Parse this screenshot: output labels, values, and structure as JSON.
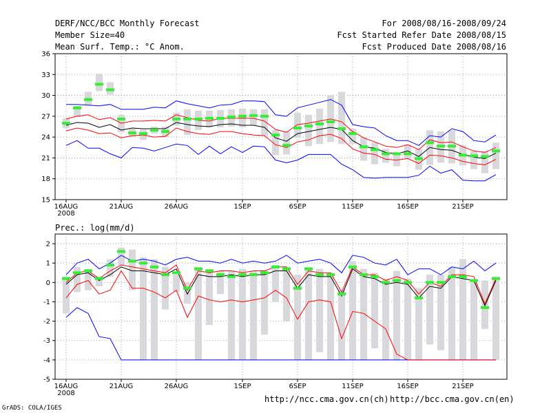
{
  "header": {
    "title": "DERF/NCC/BCC Monthly Forecast",
    "member_size": "Member Size=40",
    "panel1_label": "Mean Surf. Temp.: °C Anom.",
    "period": "For 2008/08/16-2008/09/24",
    "start_ref": "Fcst Started Refer Date 2008/08/15",
    "produced": "Fcst Produced Date 2008/08/16"
  },
  "panel2_label": "Prec.: log(mm/d)",
  "footer": {
    "url_ch": "http://ncc.cma.gov.cn(ch)",
    "url_en": "http://bcc.cma.gov.cn(en)",
    "grads": "GrADS: COLA/IGES"
  },
  "colors": {
    "max_line": "#0000ff",
    "mean_line": "#000000",
    "spread_line": "#ff0000",
    "box": "#d8d8dc",
    "member_mark": "#33ee33",
    "grid": "#888888"
  },
  "chart_data": [
    {
      "type": "line",
      "title": "Mean Surf. Temp.: °C Anom.",
      "x_ticks": [
        {
          "day": 1,
          "label": "16AUG",
          "sub": "2008"
        },
        {
          "day": 6,
          "label": "21AUG"
        },
        {
          "day": 11,
          "label": "26AUG"
        },
        {
          "day": 17,
          "label": "1SEP"
        },
        {
          "day": 22,
          "label": "6SEP"
        },
        {
          "day": 27,
          "label": "11SEP"
        },
        {
          "day": 32,
          "label": "16SEP"
        },
        {
          "day": 37,
          "label": "21SEP"
        }
      ],
      "y_ticks": [
        15,
        18,
        21,
        24,
        27,
        30,
        33,
        36
      ],
      "ylim": [
        15,
        36
      ],
      "xlim": [
        0,
        41
      ],
      "days": [
        1,
        2,
        3,
        4,
        5,
        6,
        7,
        8,
        9,
        10,
        11,
        12,
        13,
        14,
        15,
        16,
        17,
        18,
        19,
        20,
        21,
        22,
        23,
        24,
        25,
        26,
        27,
        28,
        29,
        30,
        31,
        32,
        33,
        34,
        35,
        36,
        37,
        38,
        39,
        40
      ],
      "series": [
        {
          "name": "max",
          "color": "#0000ff",
          "values": [
            28.7,
            28.7,
            28.6,
            28.5,
            28.7,
            28.0,
            28.0,
            28.0,
            28.3,
            28.2,
            29.2,
            28.8,
            28.5,
            28.2,
            28.6,
            28.7,
            29.2,
            29.2,
            29.1,
            27.2,
            27.0,
            28.2,
            28.6,
            29.0,
            29.4,
            28.6,
            25.8,
            25.5,
            25.3,
            24.2,
            23.5,
            23.5,
            22.8,
            24.2,
            24.0,
            25.2,
            24.8,
            23.5,
            23.3,
            24.3
          ]
        },
        {
          "name": "upper",
          "color": "#ff0000",
          "values": [
            26.6,
            27.0,
            27.2,
            26.5,
            26.8,
            26.0,
            26.3,
            26.3,
            26.4,
            26.3,
            27.2,
            26.8,
            26.4,
            26.3,
            26.7,
            26.7,
            26.7,
            26.7,
            26.3,
            25.1,
            24.7,
            25.8,
            26.0,
            26.3,
            26.6,
            26.2,
            24.8,
            23.9,
            23.3,
            22.7,
            22.5,
            22.9,
            22.2,
            23.6,
            23.2,
            23.3,
            22.6,
            22.0,
            21.8,
            22.5
          ]
        },
        {
          "name": "mean",
          "color": "#000000",
          "values": [
            25.7,
            26.1,
            26.0,
            25.4,
            25.8,
            25.0,
            25.3,
            25.2,
            25.2,
            25.2,
            26.1,
            25.8,
            25.6,
            25.5,
            25.8,
            25.9,
            25.7,
            25.7,
            25.4,
            23.9,
            23.4,
            24.5,
            24.8,
            25.1,
            25.4,
            25.1,
            23.5,
            22.6,
            22.4,
            21.8,
            21.6,
            22.0,
            21.2,
            22.5,
            22.2,
            22.1,
            21.5,
            21.1,
            20.9,
            21.7
          ]
        },
        {
          "name": "lower",
          "color": "#ff0000",
          "values": [
            24.9,
            25.3,
            25.0,
            24.5,
            24.6,
            23.9,
            24.2,
            24.3,
            24.0,
            24.1,
            25.3,
            24.8,
            24.5,
            24.4,
            24.8,
            24.8,
            24.5,
            24.3,
            24.2,
            22.9,
            22.5,
            23.3,
            23.6,
            24.2,
            24.4,
            23.8,
            22.3,
            21.7,
            21.5,
            20.8,
            20.7,
            20.9,
            20.2,
            21.4,
            21.3,
            21.0,
            20.5,
            20.2,
            20.0,
            20.8
          ]
        },
        {
          "name": "min",
          "color": "#0000ff",
          "values": [
            22.8,
            23.5,
            22.4,
            22.4,
            21.6,
            21.0,
            22.5,
            22.4,
            22.0,
            22.5,
            23.0,
            22.8,
            21.5,
            22.7,
            21.6,
            22.6,
            21.8,
            22.7,
            22.6,
            20.7,
            20.3,
            20.7,
            21.5,
            21.5,
            21.5,
            20.1,
            19.3,
            18.2,
            18.1,
            18.2,
            18.2,
            18.2,
            18.5,
            19.8,
            18.8,
            19.3,
            17.8,
            17.7,
            17.7,
            18.6
          ]
        }
      ],
      "boxes": [
        [
          25.3,
          26.7
        ],
        [
          26.9,
          28.5
        ],
        [
          28.6,
          30.5
        ],
        [
          30.6,
          33.1
        ],
        [
          30.1,
          31.9
        ],
        [
          24.7,
          27.2
        ],
        [
          24.0,
          25.2
        ],
        [
          23.6,
          25.1
        ],
        [
          24.5,
          25.5
        ],
        [
          24.0,
          25.5
        ],
        [
          25.7,
          27.5
        ],
        [
          24.3,
          28.0
        ],
        [
          25.0,
          27.8
        ],
        [
          25.4,
          27.8
        ],
        [
          25.4,
          27.9
        ],
        [
          25.5,
          28.0
        ],
        [
          25.4,
          28.1
        ],
        [
          25.7,
          28.0
        ],
        [
          24.2,
          28.0
        ],
        [
          21.4,
          25.0
        ],
        [
          21.5,
          24.8
        ],
        [
          23.9,
          27.5
        ],
        [
          22.7,
          27.2
        ],
        [
          23.0,
          28.1
        ],
        [
          23.3,
          30.0
        ],
        [
          23.0,
          30.5
        ],
        [
          23.0,
          25.2
        ],
        [
          20.6,
          24.0
        ],
        [
          20.1,
          23.2
        ],
        [
          20.3,
          22.3
        ],
        [
          19.8,
          21.8
        ],
        [
          20.9,
          22.9
        ],
        [
          19.3,
          22.3
        ],
        [
          20.0,
          25.0
        ],
        [
          20.3,
          24.8
        ],
        [
          20.2,
          25.0
        ],
        [
          19.9,
          22.8
        ],
        [
          19.4,
          22.0
        ],
        [
          18.8,
          22.0
        ],
        [
          19.4,
          23.2
        ]
      ],
      "member_marks": [
        26.0,
        28.2,
        29.4,
        31.6,
        30.8,
        26.6,
        24.6,
        24.5,
        25.0,
        24.8,
        26.6,
        26.6,
        26.6,
        26.7,
        26.7,
        26.9,
        27.0,
        27.1,
        27.0,
        24.3,
        22.8,
        25.3,
        25.6,
        25.9,
        26.2,
        25.2,
        24.5,
        22.6,
        22.2,
        21.6,
        21.6,
        21.6,
        20.9,
        23.2,
        22.7,
        22.7,
        21.4,
        21.3,
        21.2,
        22.0
      ]
    },
    {
      "type": "line",
      "title": "Prec.: log(mm/d)",
      "x_ticks": [
        {
          "day": 1,
          "label": "16AUG",
          "sub": "2008"
        },
        {
          "day": 6,
          "label": "21AUG"
        },
        {
          "day": 11,
          "label": "26AUG"
        },
        {
          "day": 17,
          "label": "1SEP"
        },
        {
          "day": 22,
          "label": "6SEP"
        },
        {
          "day": 27,
          "label": "11SEP"
        },
        {
          "day": 32,
          "label": "16SEP"
        },
        {
          "day": 37,
          "label": "21SEP"
        }
      ],
      "y_ticks": [
        -5,
        -4,
        -3,
        -2,
        -1,
        0,
        1,
        2
      ],
      "ylim": [
        -5,
        2.5
      ],
      "xlim": [
        0,
        41
      ],
      "days": [
        1,
        2,
        3,
        4,
        5,
        6,
        7,
        8,
        9,
        10,
        11,
        12,
        13,
        14,
        15,
        16,
        17,
        18,
        19,
        20,
        21,
        22,
        23,
        24,
        25,
        26,
        27,
        28,
        29,
        30,
        31,
        32,
        33,
        34,
        35,
        36,
        37,
        38,
        39,
        40
      ],
      "series": [
        {
          "name": "max",
          "color": "#0000ff",
          "values": [
            0.4,
            1.0,
            1.2,
            0.7,
            1.0,
            1.4,
            1.1,
            1.2,
            1.1,
            0.9,
            1.2,
            1.3,
            1.1,
            1.1,
            1.0,
            1.2,
            1.0,
            1.1,
            1.0,
            1.1,
            1.4,
            1.0,
            1.1,
            1.2,
            1.0,
            0.5,
            1.4,
            1.3,
            1.0,
            0.9,
            1.2,
            0.4,
            0.7,
            0.7,
            0.4,
            0.8,
            0.7,
            1.1,
            0.6,
            1.0
          ]
        },
        {
          "name": "upper",
          "color": "#ff0000",
          "values": [
            0.0,
            0.5,
            0.6,
            0.2,
            0.6,
            0.9,
            0.8,
            0.7,
            0.6,
            0.5,
            0.9,
            -0.4,
            0.6,
            0.5,
            0.6,
            0.6,
            0.5,
            0.6,
            0.6,
            0.8,
            0.8,
            -0.1,
            0.6,
            0.5,
            0.5,
            -0.5,
            0.8,
            0.4,
            0.4,
            0.1,
            0.3,
            0.1,
            -0.6,
            0.0,
            -0.2,
            0.4,
            0.4,
            0.3,
            -1.1,
            0.2
          ]
        },
        {
          "name": "mean",
          "color": "#000000",
          "values": [
            -0.1,
            0.4,
            0.5,
            0.1,
            0.4,
            0.8,
            0.6,
            0.6,
            0.5,
            0.4,
            0.7,
            -0.6,
            0.4,
            0.3,
            0.3,
            0.4,
            0.3,
            0.4,
            0.4,
            0.6,
            0.6,
            -0.3,
            0.4,
            0.3,
            0.3,
            -0.7,
            0.7,
            0.3,
            0.2,
            -0.1,
            0.0,
            -0.1,
            -0.8,
            -0.2,
            -0.3,
            0.3,
            0.2,
            0.1,
            -1.2,
            0.1
          ]
        },
        {
          "name": "lower",
          "color": "#ff0000",
          "values": [
            -0.8,
            -0.1,
            0.1,
            -0.6,
            -0.4,
            0.6,
            -0.3,
            -0.3,
            -0.5,
            -0.8,
            -0.4,
            -1.8,
            -0.7,
            -0.9,
            -1.0,
            -0.9,
            -1.0,
            -0.9,
            -0.8,
            -0.4,
            -0.8,
            -1.9,
            -1.0,
            -0.9,
            -1.0,
            -2.9,
            -1.5,
            -1.6,
            -2.0,
            -2.4,
            -3.7,
            -4.0,
            null,
            null,
            null,
            null,
            null,
            null,
            null,
            null
          ]
        },
        {
          "name": "min",
          "color": "#0000ff",
          "values": [
            -1.8,
            -1.3,
            -1.6,
            -2.8,
            -2.9,
            -4.0,
            -4.0,
            -4.0,
            -4.0,
            -4.0,
            -4.0,
            -4.0,
            -4.0,
            -4.0,
            -4.0,
            -4.0,
            -4.0,
            -4.0,
            -4.0,
            -4.0,
            -4.0,
            -4.0,
            -4.0,
            -4.0,
            -4.0,
            -4.0,
            -4.0,
            -4.0,
            -4.0,
            -4.0,
            -4.0,
            -4.0,
            -4.0,
            -4.0,
            -4.0,
            -4.0,
            -4.0,
            -4.0,
            -4.0,
            -4.0
          ]
        },
        {
          "name": "floor",
          "color": "#ff0000",
          "values": [
            null,
            null,
            null,
            null,
            null,
            null,
            null,
            null,
            null,
            null,
            null,
            null,
            null,
            null,
            null,
            null,
            null,
            null,
            null,
            null,
            null,
            null,
            null,
            null,
            null,
            null,
            null,
            null,
            null,
            null,
            null,
            -4.0,
            -4.0,
            -4.0,
            -4.0,
            -4.0,
            -4.0,
            -4.0,
            -4.0,
            -4.0
          ]
        }
      ],
      "boxes": [
        [
          -1.6,
          0.3
        ],
        [
          -0.5,
          0.8
        ],
        [
          -0.4,
          0.7
        ],
        [
          -0.2,
          0.3
        ],
        [
          0.3,
          1.2
        ],
        [
          0.9,
          1.8
        ],
        [
          -0.4,
          1.7
        ],
        [
          -4.0,
          1.3
        ],
        [
          -4.0,
          1.2
        ],
        [
          -1.4,
          0.8
        ],
        [
          -0.5,
          0.4
        ],
        [
          -1.1,
          0.0
        ],
        [
          -4.0,
          0.8
        ],
        [
          -2.2,
          0.7
        ],
        [
          -0.6,
          0.6
        ],
        [
          -4.0,
          0.6
        ],
        [
          -4.0,
          0.7
        ],
        [
          -4.0,
          0.6
        ],
        [
          -2.7,
          0.6
        ],
        [
          -1.0,
          0.9
        ],
        [
          -2.0,
          0.8
        ],
        [
          -4.0,
          0.4
        ],
        [
          -4.0,
          0.8
        ],
        [
          -3.6,
          0.7
        ],
        [
          -4.0,
          0.5
        ],
        [
          -4.0,
          -0.4
        ],
        [
          -4.0,
          1.1
        ],
        [
          -4.0,
          0.7
        ],
        [
          -3.4,
          0.5
        ],
        [
          -4.0,
          0.2
        ],
        [
          -4.0,
          0.6
        ],
        [
          -4.0,
          0.2
        ],
        [
          -4.0,
          -0.3
        ],
        [
          -3.2,
          0.4
        ],
        [
          -3.5,
          0.4
        ],
        [
          -4.0,
          0.8
        ],
        [
          -4.0,
          1.2
        ],
        [
          -4.0,
          0.1
        ],
        [
          -2.4,
          0.1
        ],
        [
          -4.0,
          0.3
        ]
      ],
      "member_marks": [
        0.2,
        0.5,
        0.6,
        0.2,
        0.9,
        1.6,
        1.1,
        1.0,
        0.8,
        0.4,
        0.5,
        -0.3,
        0.7,
        0.6,
        0.4,
        0.3,
        0.4,
        0.4,
        0.5,
        0.8,
        0.7,
        -0.3,
        0.7,
        0.4,
        0.4,
        -0.6,
        0.8,
        0.4,
        0.3,
        0.0,
        0.1,
        0.0,
        -0.8,
        0.0,
        0.0,
        0.3,
        0.3,
        0.1,
        -1.3,
        0.2
      ]
    }
  ]
}
